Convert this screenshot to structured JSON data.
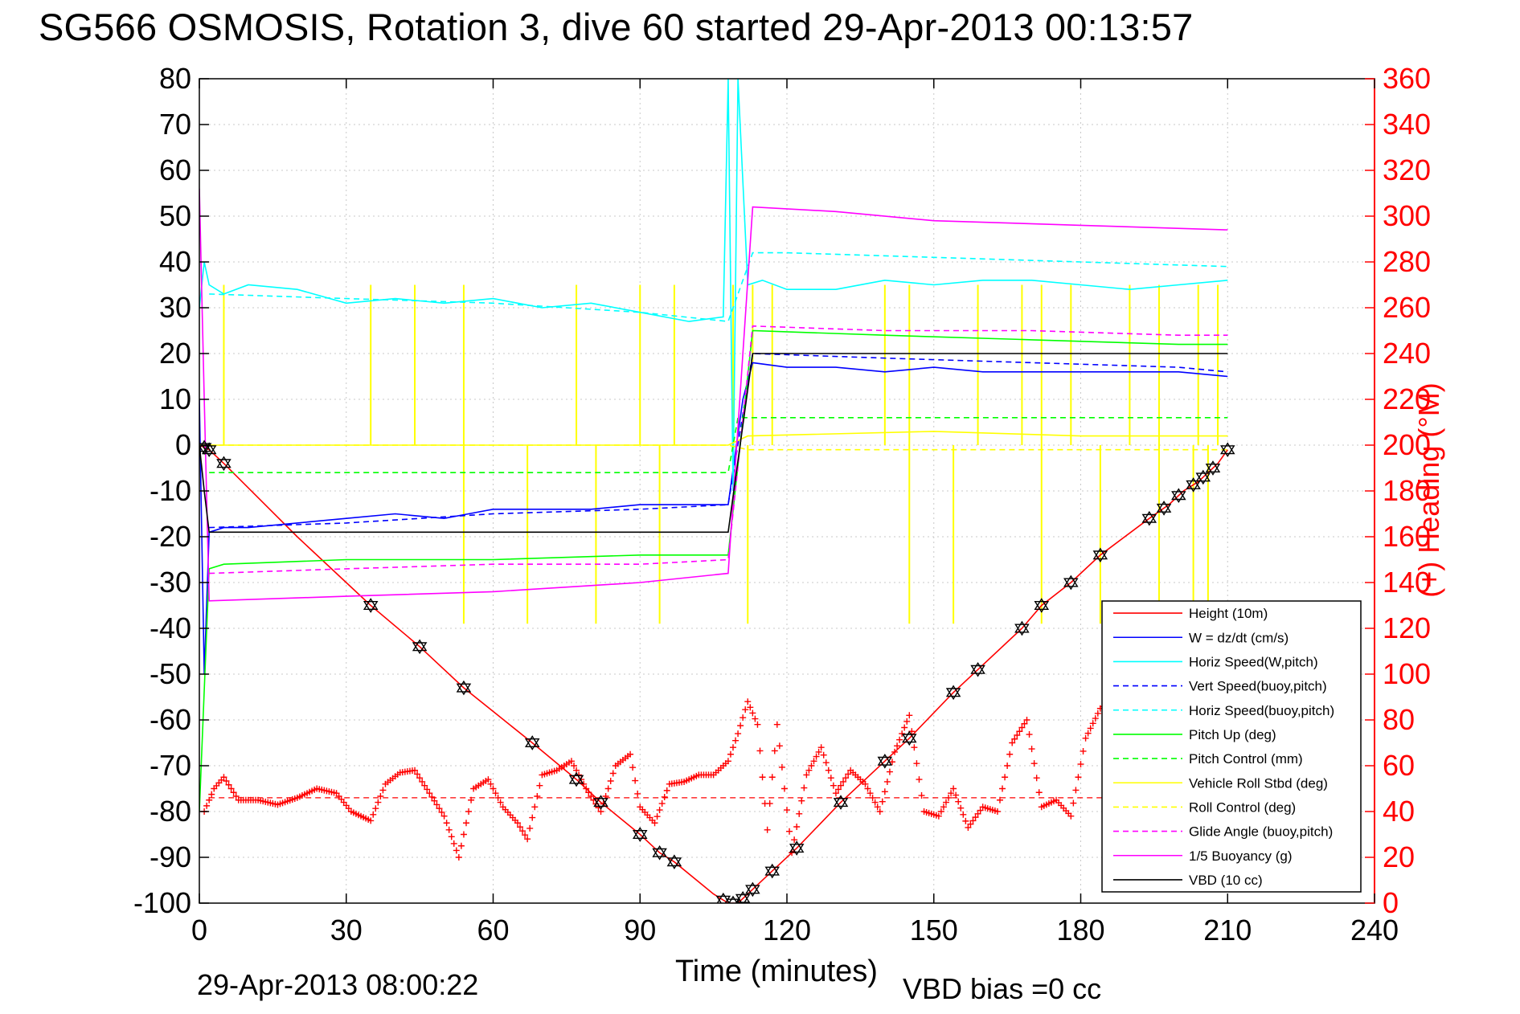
{
  "chart_data": {
    "type": "line",
    "title": "SG566 OSMOSIS, Rotation 3, dive 60 started 29-Apr-2013 00:13:57",
    "xlabel": "Time (minutes)",
    "ylabel": "",
    "y2label": "(+) Heading (°M)",
    "footer_left": "29-Apr-2013 08:00:22",
    "footer_right": "VBD bias =0 cc",
    "xlim": [
      0,
      240
    ],
    "ylim": [
      -100,
      80
    ],
    "y2lim": [
      0,
      360
    ],
    "xticks": [
      0,
      30,
      60,
      90,
      120,
      150,
      180,
      210,
      240
    ],
    "yticks": [
      80,
      70,
      60,
      50,
      40,
      30,
      20,
      10,
      0,
      -10,
      -20,
      -30,
      -40,
      -50,
      -60,
      -70,
      -80,
      -90,
      -100
    ],
    "y2ticks": [
      360,
      340,
      320,
      300,
      280,
      260,
      240,
      220,
      200,
      180,
      160,
      140,
      120,
      100,
      80,
      60,
      40,
      20,
      0
    ],
    "grid": true,
    "legend_position": "bottom-right",
    "colors": {
      "red": "#ff0000",
      "blue": "#0000ff",
      "cyan": "#00ffff",
      "green": "#00ff00",
      "yellow": "#ffff00",
      "magenta": "#ff00ff",
      "black": "#000000"
    },
    "legend": [
      {
        "label": "Height (10m)",
        "color": "#ff0000",
        "dash": false
      },
      {
        "label": "W = dz/dt (cm/s)",
        "color": "#0000ff",
        "dash": false
      },
      {
        "label": "Horiz Speed(W,pitch)",
        "color": "#00ffff",
        "dash": false
      },
      {
        "label": "Vert Speed(buoy,pitch)",
        "color": "#0000ff",
        "dash": true
      },
      {
        "label": "Horiz Speed(buoy,pitch)",
        "color": "#00ffff",
        "dash": true
      },
      {
        "label": "Pitch Up (deg)",
        "color": "#00ff00",
        "dash": false
      },
      {
        "label": "Pitch Control (mm)",
        "color": "#00ff00",
        "dash": true
      },
      {
        "label": "Vehicle Roll Stbd (deg)",
        "color": "#ffff00",
        "dash": false
      },
      {
        "label": "Roll Control (deg)",
        "color": "#ffff00",
        "dash": true
      },
      {
        "label": "Glide Angle (buoy,pitch)",
        "color": "#ff00ff",
        "dash": true
      },
      {
        "label": "1/5 Buoyancy (g)",
        "color": "#ff00ff",
        "dash": false
      },
      {
        "label": "VBD (10 cc)",
        "color": "#000000",
        "dash": false
      }
    ],
    "series": [
      {
        "name": "Height (10m)",
        "color": "#ff0000",
        "dash": false,
        "x": [
          0,
          1,
          2,
          5,
          20,
          35,
          45,
          54,
          68,
          77,
          82,
          90,
          94,
          97,
          105,
          108,
          110,
          112,
          117,
          122,
          131,
          140,
          145,
          154,
          159,
          168,
          172,
          178,
          184,
          194,
          198,
          201,
          204,
          206,
          208,
          210
        ],
        "y": [
          0,
          -0.5,
          -1,
          -4,
          -20,
          -35,
          -44,
          -53,
          -65,
          -73,
          -78,
          -85,
          -89,
          -91,
          -98,
          -100,
          -100,
          -98,
          -93,
          -88,
          -78,
          -69,
          -64,
          -54,
          -49,
          -40,
          -35,
          -30,
          -24,
          -16,
          -13,
          -10,
          -8,
          -6,
          -4,
          -1
        ]
      },
      {
        "name": "W = dz/dt (cm/s)",
        "color": "#0000ff",
        "dash": false,
        "x": [
          0,
          1,
          2,
          5,
          10,
          20,
          30,
          40,
          50,
          55,
          60,
          70,
          80,
          90,
          100,
          108,
          111,
          113,
          120,
          130,
          140,
          150,
          160,
          170,
          180,
          190,
          200,
          210
        ],
        "y": [
          10,
          -50,
          -19,
          -18,
          -18,
          -17,
          -16,
          -15,
          -16,
          -15,
          -14,
          -14,
          -14,
          -13,
          -13,
          -13,
          10,
          18,
          17,
          17,
          16,
          17,
          16,
          16,
          16,
          16,
          16,
          15
        ]
      },
      {
        "name": "Vert Speed(buoy,pitch)",
        "color": "#0000ff",
        "dash": true,
        "x": [
          2,
          30,
          60,
          90,
          108,
          113,
          140,
          170,
          200,
          210
        ],
        "y": [
          -18,
          -17,
          -15,
          -14,
          -13,
          20,
          19,
          18,
          17,
          16
        ]
      },
      {
        "name": "Horiz Speed(W,pitch)",
        "color": "#00ffff",
        "dash": false,
        "x": [
          0,
          1,
          2,
          5,
          10,
          20,
          30,
          40,
          50,
          60,
          70,
          80,
          90,
          100,
          107,
          108,
          109,
          110,
          112,
          115,
          120,
          130,
          140,
          150,
          160,
          170,
          180,
          190,
          200,
          210
        ],
        "y": [
          30,
          40,
          35,
          33,
          35,
          34,
          31,
          32,
          31,
          32,
          30,
          31,
          29,
          27,
          28,
          80,
          -10,
          80,
          35,
          36,
          34,
          34,
          36,
          35,
          36,
          36,
          35,
          34,
          35,
          36
        ]
      },
      {
        "name": "Horiz Speed(buoy,pitch)",
        "color": "#00ffff",
        "dash": true,
        "x": [
          2,
          30,
          60,
          90,
          108,
          113,
          120,
          150,
          180,
          210
        ],
        "y": [
          33,
          32,
          31,
          29,
          27,
          42,
          42,
          41,
          40,
          39
        ]
      },
      {
        "name": "Pitch Up (deg)",
        "color": "#00ff00",
        "dash": false,
        "x": [
          0,
          2,
          5,
          30,
          60,
          90,
          108,
          113,
          140,
          170,
          200,
          210
        ],
        "y": [
          -80,
          -27,
          -26,
          -25,
          -25,
          -24,
          -24,
          25,
          24,
          23,
          22,
          22
        ]
      },
      {
        "name": "Pitch Control (mm)",
        "color": "#00ff00",
        "dash": true,
        "x": [
          2,
          108,
          110,
          210
        ],
        "y": [
          -6,
          -6,
          6,
          6
        ]
      },
      {
        "name": "Vehicle Roll Stbd (deg)",
        "color": "#ffff00",
        "dash": false,
        "x": [
          0,
          5,
          30,
          60,
          90,
          108,
          112,
          150,
          180,
          210
        ],
        "y": [
          0,
          0,
          0,
          0,
          0,
          0,
          2,
          3,
          2,
          2
        ]
      },
      {
        "name": "Roll Control (deg)",
        "color": "#ffff00",
        "dash": true,
        "x": [
          0,
          5,
          30,
          60,
          90,
          108,
          112,
          150,
          180,
          210
        ],
        "y": [
          0,
          0,
          0,
          0,
          0,
          0,
          -1,
          -1,
          -1,
          -1
        ]
      },
      {
        "name": "Glide Angle (buoy,pitch)",
        "color": "#ff00ff",
        "dash": true,
        "x": [
          2,
          30,
          60,
          90,
          108,
          113,
          140,
          170,
          200,
          210
        ],
        "y": [
          -28,
          -27,
          -26,
          -26,
          -25,
          26,
          25,
          25,
          24,
          24
        ]
      },
      {
        "name": "1/5 Buoyancy (g)",
        "color": "#ff00ff",
        "dash": false,
        "x": [
          0,
          1,
          2,
          30,
          60,
          90,
          108,
          113,
          130,
          150,
          180,
          210
        ],
        "y": [
          56,
          10,
          -34,
          -33,
          -32,
          -30,
          -28,
          52,
          51,
          49,
          48,
          47
        ]
      },
      {
        "name": "VBD (10 cc)",
        "color": "#000000",
        "dash": false,
        "x": [
          0,
          1,
          2,
          108,
          113,
          210
        ],
        "y": [
          0,
          -10,
          -19,
          -19,
          20,
          20
        ]
      }
    ],
    "roll_spikes": {
      "up_x": [
        5,
        35,
        44,
        54,
        77,
        90,
        97,
        109,
        113,
        117,
        140,
        145,
        159,
        168,
        172,
        178,
        190,
        196,
        204,
        208
      ],
      "up_y": 35,
      "down_x": [
        54,
        67,
        81,
        94,
        112,
        145,
        154,
        172,
        184,
        196,
        203,
        206
      ],
      "down_y": -39
    },
    "heading_series": {
      "name": "(+) Heading (°M)",
      "color": "#ff0000",
      "marker": "+",
      "x": [
        1,
        3,
        5,
        8,
        12,
        16,
        20,
        24,
        28,
        31,
        35,
        38,
        41,
        44,
        47,
        50,
        53,
        56,
        59,
        62,
        65,
        67,
        70,
        73,
        76,
        79,
        82,
        85,
        88,
        90,
        93,
        96,
        99,
        102,
        105,
        108,
        110,
        112,
        114,
        116,
        118,
        121,
        124,
        127,
        130,
        133,
        136,
        139,
        142,
        145,
        148,
        151,
        154,
        157,
        160,
        163,
        166,
        169,
        172,
        175,
        178,
        181,
        184,
        187
      ],
      "y": [
        40,
        50,
        55,
        45,
        45,
        43,
        46,
        50,
        48,
        40,
        36,
        52,
        57,
        58,
        48,
        38,
        20,
        50,
        54,
        42,
        35,
        28,
        56,
        58,
        62,
        50,
        40,
        60,
        65,
        42,
        35,
        52,
        53,
        56,
        56,
        62,
        74,
        88,
        78,
        32,
        78,
        22,
        56,
        68,
        48,
        58,
        52,
        40,
        66,
        82,
        40,
        38,
        50,
        33,
        42,
        40,
        70,
        80,
        42,
        45,
        38,
        72,
        85,
        90
      ],
      "reference_heading": 46
    },
    "height_markers_x": [
      1,
      2,
      5,
      35,
      45,
      54,
      68,
      77,
      82,
      90,
      94,
      97,
      107,
      109,
      111,
      113,
      117,
      122,
      131,
      140,
      145,
      154,
      159,
      168,
      172,
      178,
      184,
      194,
      197,
      200,
      203,
      205,
      207,
      210
    ]
  }
}
